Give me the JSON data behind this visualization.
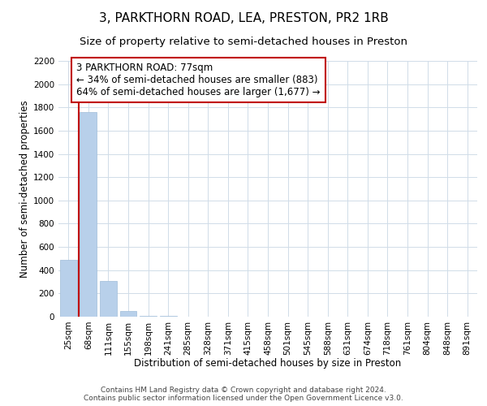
{
  "title": "3, PARKTHORN ROAD, LEA, PRESTON, PR2 1RB",
  "subtitle": "Size of property relative to semi-detached houses in Preston",
  "xlabel": "Distribution of semi-detached houses by size in Preston",
  "ylabel": "Number of semi-detached properties",
  "footer_line1": "Contains HM Land Registry data © Crown copyright and database right 2024.",
  "footer_line2": "Contains public sector information licensed under the Open Government Licence v3.0.",
  "annotation_line1": "3 PARKTHORN ROAD: 77sqm",
  "annotation_line2": "← 34% of semi-detached houses are smaller (883)",
  "annotation_line3": "64% of semi-detached houses are larger (1,677) →",
  "bar_data": [
    {
      "bin_label": "25sqm",
      "value": 490
    },
    {
      "bin_label": "68sqm",
      "value": 1760
    },
    {
      "bin_label": "111sqm",
      "value": 305
    },
    {
      "bin_label": "155sqm",
      "value": 50
    },
    {
      "bin_label": "198sqm",
      "value": 10
    },
    {
      "bin_label": "241sqm",
      "value": 5
    },
    {
      "bin_label": "285sqm",
      "value": 2
    },
    {
      "bin_label": "328sqm",
      "value": 0
    },
    {
      "bin_label": "371sqm",
      "value": 0
    },
    {
      "bin_label": "415sqm",
      "value": 0
    },
    {
      "bin_label": "458sqm",
      "value": 0
    },
    {
      "bin_label": "501sqm",
      "value": 0
    },
    {
      "bin_label": "545sqm",
      "value": 0
    },
    {
      "bin_label": "588sqm",
      "value": 0
    },
    {
      "bin_label": "631sqm",
      "value": 0
    },
    {
      "bin_label": "674sqm",
      "value": 0
    },
    {
      "bin_label": "718sqm",
      "value": 0
    },
    {
      "bin_label": "761sqm",
      "value": 0
    },
    {
      "bin_label": "804sqm",
      "value": 0
    },
    {
      "bin_label": "848sqm",
      "value": 0
    },
    {
      "bin_label": "891sqm",
      "value": 0
    }
  ],
  "bar_color": "#b8d0ea",
  "bar_edge_color": "#b8d0ea",
  "vline_color": "#c00000",
  "vline_x_bar_index": 1,
  "annotation_box_edge_color": "#c00000",
  "annotation_box_face_color": "#ffffff",
  "grid_color": "#d0dce8",
  "ylim": [
    0,
    2200
  ],
  "yticks": [
    0,
    200,
    400,
    600,
    800,
    1000,
    1200,
    1400,
    1600,
    1800,
    2000,
    2200
  ],
  "background_color": "#ffffff",
  "title_fontsize": 11,
  "subtitle_fontsize": 9.5,
  "axis_label_fontsize": 8.5,
  "tick_fontsize": 7.5,
  "annotation_fontsize": 8.5,
  "footer_fontsize": 6.5
}
